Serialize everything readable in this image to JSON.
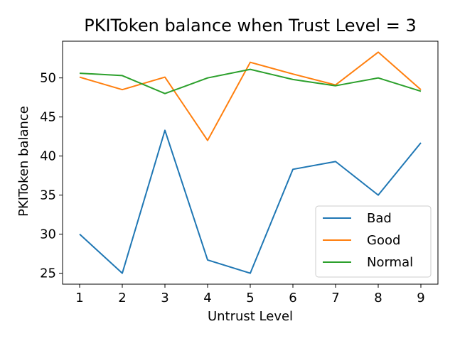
{
  "chart_data": {
    "type": "line",
    "title": "PKIToken balance when Trust Level = 3",
    "xlabel": "Untrust Level",
    "ylabel": "PKIToken balance",
    "x": [
      1,
      2,
      3,
      4,
      5,
      6,
      7,
      8,
      9
    ],
    "xlim": [
      0.6,
      9.4
    ],
    "ylim": [
      23.6,
      54.7
    ],
    "xticks": [
      "1",
      "2",
      "3",
      "4",
      "5",
      "6",
      "7",
      "8",
      "9"
    ],
    "yticks": [
      "25",
      "30",
      "35",
      "40",
      "45",
      "50"
    ],
    "grid": false,
    "legend_position": "lower-right",
    "series": [
      {
        "name": "Bad",
        "color": "#1f77b4",
        "values": [
          30.0,
          25.0,
          43.3,
          26.7,
          25.0,
          38.3,
          39.3,
          35.0,
          41.7
        ]
      },
      {
        "name": "Good",
        "color": "#ff7f0e",
        "values": [
          50.1,
          48.5,
          50.1,
          42.0,
          52.0,
          50.5,
          49.1,
          53.3,
          48.5
        ]
      },
      {
        "name": "Normal",
        "color": "#2ca02c",
        "values": [
          50.6,
          50.3,
          48.0,
          50.0,
          51.1,
          49.8,
          49.0,
          50.0,
          48.3
        ]
      }
    ]
  }
}
